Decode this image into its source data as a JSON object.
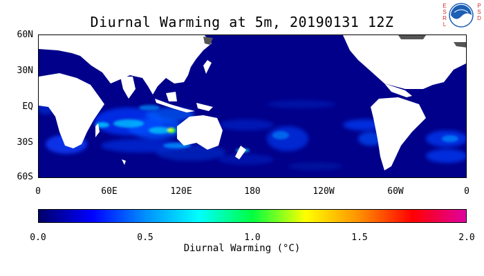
{
  "title": "Diurnal Warming at 5m, 20190131 12Z",
  "org_left": [
    "E",
    "S",
    "R",
    "L"
  ],
  "org_right": [
    "P",
    "S",
    "D"
  ],
  "logo_text": "NOAA",
  "map": {
    "lat_labels": [
      "60N",
      "30N",
      "EQ",
      "30S",
      "60S"
    ],
    "lon_labels": [
      "0",
      "60E",
      "120E",
      "180",
      "120W",
      "60W",
      "0"
    ],
    "ocean_color": "#00008a",
    "land_color": "#ffffff",
    "ice_color": "#555555"
  },
  "colorbar": {
    "tick_labels": [
      "0.0",
      "0.5",
      "1.0",
      "1.5",
      "2.0"
    ],
    "title": "Diurnal Warming (°C)",
    "stops": [
      "#00006a",
      "#0000ff",
      "#0090ff",
      "#00ffff",
      "#00ff40",
      "#ffff00",
      "#ff9000",
      "#ff0000",
      "#e000a0"
    ]
  }
}
